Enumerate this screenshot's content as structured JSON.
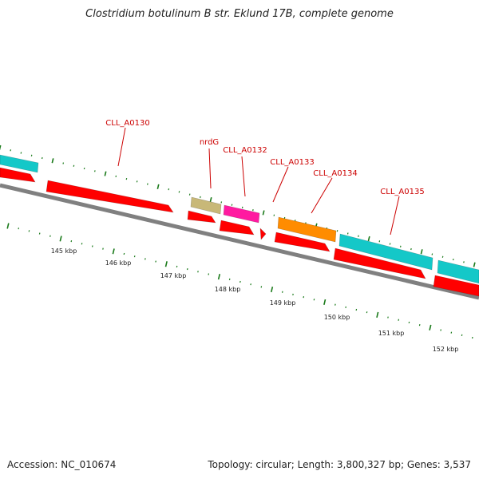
{
  "title": "Clostridium botulinum B str. Eklund 17B, complete genome",
  "footer": {
    "accession": "Accession: NC_010674",
    "topology": "Topology: circular; Length: 3,800,327 bp; Genes: 3,537"
  },
  "colors": {
    "backbone": "#808080",
    "cds": "#ff0000",
    "trna": "#c8b878",
    "misc": "#ff1aa0",
    "orange": "#ff8c00",
    "cyan": "#14c8c8",
    "label": "#cc0000",
    "tick": "#1a7a1a"
  },
  "gene_labels": [
    {
      "id": "g1",
      "text": "CLL_A0130"
    },
    {
      "id": "g2",
      "text": "nrdG"
    },
    {
      "id": "g3",
      "text": "CLL_A0132"
    },
    {
      "id": "g4",
      "text": "CLL_A0133"
    },
    {
      "id": "g5",
      "text": "CLL_A0134"
    },
    {
      "id": "g6",
      "text": "CLL_A0135"
    }
  ],
  "scale_labels": [
    "145 kbp",
    "146 kbp",
    "147 kbp",
    "148 kbp",
    "149 kbp",
    "150 kbp",
    "151 kbp",
    "152 kbp"
  ]
}
